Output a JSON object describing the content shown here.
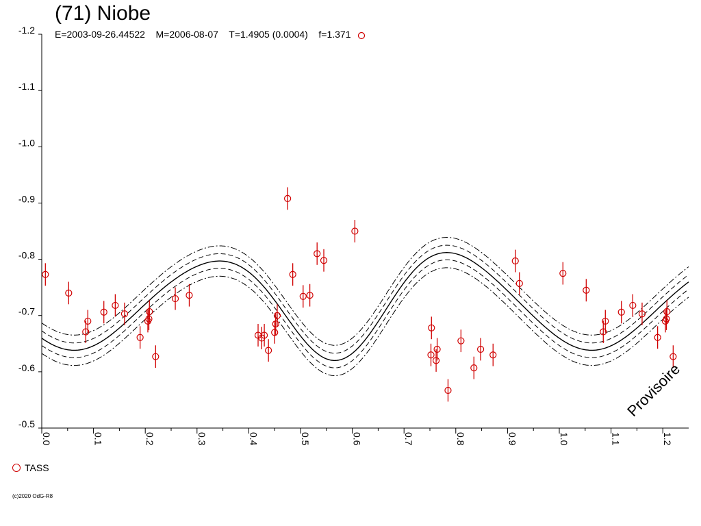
{
  "chart_data": {
    "type": "scatter",
    "title": "(71) Niobe",
    "subtitle": "E=2003-09-26.44522    M=2006-08-07    T=1.4905 (0.0004)    f=1.371",
    "watermark": "Provisoire",
    "copyright": "(c)2020 OdG-R8",
    "xlabel": "",
    "ylabel": "",
    "xlim": [
      0.0,
      1.25
    ],
    "ylim": [
      -1.2,
      -0.5
    ],
    "y_inverted": true,
    "x_ticks": [
      "0.0",
      "0.1",
      "0.2",
      "0.3",
      "0.4",
      "0.5",
      "0.6",
      "0.7",
      "0.8",
      "0.9",
      "1.0",
      "1.1",
      "1.2"
    ],
    "y_ticks": [
      "-1.2",
      "-1.1",
      "-1.0",
      "-0.9",
      "-0.8",
      "-0.7",
      "-0.6",
      "-0.5"
    ],
    "legend": {
      "position": "bottom-left",
      "entries": [
        "TASS"
      ]
    },
    "series": [
      {
        "name": "TASS",
        "marker": "open-circle",
        "color": "#d00000",
        "error_bar": 0.02,
        "points": [
          {
            "x": 0.007,
            "y": -0.773
          },
          {
            "x": 0.052,
            "y": -0.74
          },
          {
            "x": 0.085,
            "y": -0.671
          },
          {
            "x": 0.089,
            "y": -0.69
          },
          {
            "x": 0.12,
            "y": -0.706
          },
          {
            "x": 0.142,
            "y": -0.718
          },
          {
            "x": 0.16,
            "y": -0.703
          },
          {
            "x": 0.19,
            "y": -0.661
          },
          {
            "x": 0.205,
            "y": -0.69
          },
          {
            "x": 0.207,
            "y": -0.694
          },
          {
            "x": 0.208,
            "y": -0.707
          },
          {
            "x": 0.22,
            "y": -0.627
          },
          {
            "x": 0.258,
            "y": -0.73
          },
          {
            "x": 0.285,
            "y": -0.736
          },
          {
            "x": 0.418,
            "y": -0.665
          },
          {
            "x": 0.425,
            "y": -0.66
          },
          {
            "x": 0.43,
            "y": -0.665
          },
          {
            "x": 0.438,
            "y": -0.638
          },
          {
            "x": 0.45,
            "y": -0.67
          },
          {
            "x": 0.452,
            "y": -0.685
          },
          {
            "x": 0.455,
            "y": -0.7
          },
          {
            "x": 0.475,
            "y": -0.908
          },
          {
            "x": 0.485,
            "y": -0.773
          },
          {
            "x": 0.505,
            "y": -0.734
          },
          {
            "x": 0.518,
            "y": -0.736
          },
          {
            "x": 0.532,
            "y": -0.81
          },
          {
            "x": 0.545,
            "y": -0.798
          },
          {
            "x": 0.605,
            "y": -0.85
          },
          {
            "x": 0.752,
            "y": -0.63
          },
          {
            "x": 0.753,
            "y": -0.678
          },
          {
            "x": 0.762,
            "y": -0.62
          },
          {
            "x": 0.764,
            "y": -0.64
          },
          {
            "x": 0.785,
            "y": -0.567
          },
          {
            "x": 0.81,
            "y": -0.655
          },
          {
            "x": 0.835,
            "y": -0.607
          },
          {
            "x": 0.848,
            "y": -0.64
          },
          {
            "x": 0.872,
            "y": -0.63
          },
          {
            "x": 0.915,
            "y": -0.797
          },
          {
            "x": 0.923,
            "y": -0.757
          },
          {
            "x": 1.007,
            "y": -0.775
          },
          {
            "x": 1.052,
            "y": -0.745
          },
          {
            "x": 1.085,
            "y": -0.671
          },
          {
            "x": 1.089,
            "y": -0.69
          },
          {
            "x": 1.12,
            "y": -0.706
          },
          {
            "x": 1.142,
            "y": -0.718
          },
          {
            "x": 1.16,
            "y": -0.703
          },
          {
            "x": 1.19,
            "y": -0.661
          },
          {
            "x": 1.205,
            "y": -0.69
          },
          {
            "x": 1.207,
            "y": -0.694
          },
          {
            "x": 1.208,
            "y": -0.707
          },
          {
            "x": 1.22,
            "y": -0.627
          }
        ]
      }
    ],
    "fit_curve": {
      "mean_mag": -0.72,
      "harmonics": [
        {
          "n": 1,
          "a": 0.005,
          "b": 0.006
        },
        {
          "n": 2,
          "a": 0.06,
          "b": 0.06
        },
        {
          "n": 3,
          "a": -0.003,
          "b": -0.016
        },
        {
          "n": 4,
          "a": -0.0017,
          "b": 0.0059
        }
      ],
      "band_inner": 0.013,
      "band_outer": 0.027,
      "styles": [
        "solid",
        "dashed",
        "dash-dot"
      ]
    }
  }
}
